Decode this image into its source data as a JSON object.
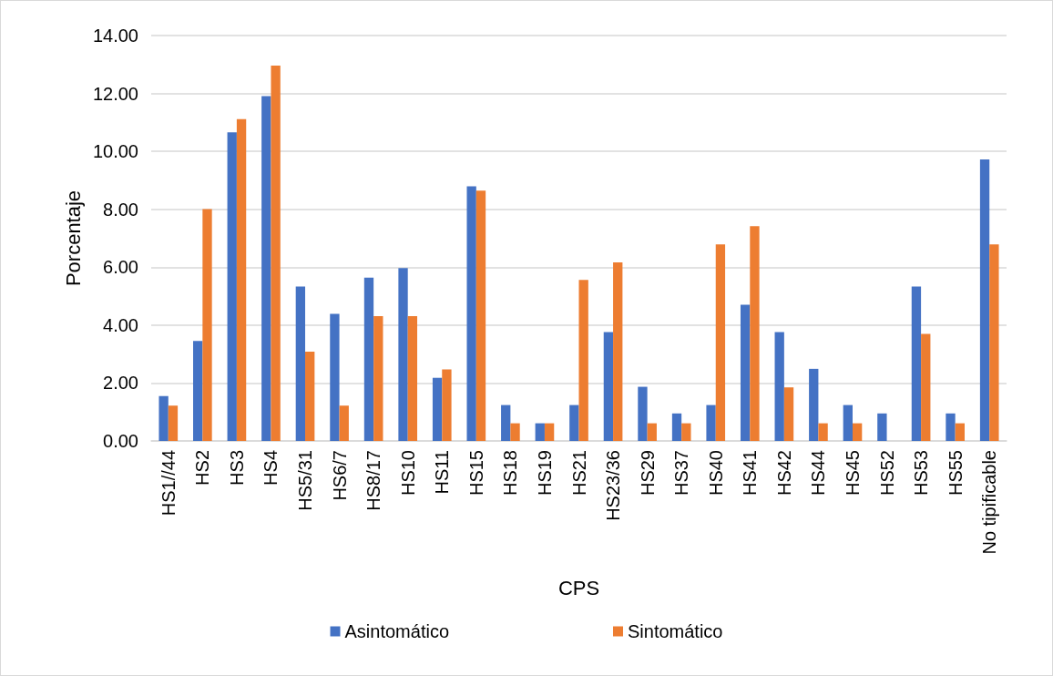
{
  "chart_data": {
    "type": "bar",
    "xlabel": "CPS",
    "ylabel": "Porcentaje",
    "categories": [
      "HS1//44",
      "HS2",
      "HS3",
      "HS4",
      "HS5/31",
      "HS6/7",
      "HS8/17",
      "HS10",
      "HS11",
      "HS15",
      "HS18",
      "HS19",
      "HS21",
      "HS23/36",
      "HS29",
      "HS37",
      "HS40",
      "HS41",
      "HS42",
      "HS44",
      "HS45",
      "HS52",
      "HS53",
      "HS55",
      "No tipificable"
    ],
    "series": [
      {
        "name": "Asintomático",
        "color": "#4472c4",
        "values": [
          1.55,
          3.45,
          10.66,
          11.91,
          5.33,
          4.39,
          5.64,
          5.97,
          2.18,
          8.79,
          1.24,
          0.61,
          1.24,
          3.76,
          1.87,
          0.95,
          1.24,
          4.7,
          3.76,
          2.49,
          1.24,
          0.95,
          5.33,
          0.95,
          9.72
        ]
      },
      {
        "name": "Sintomático",
        "color": "#ed7d31",
        "values": [
          1.22,
          8.01,
          11.11,
          12.96,
          3.08,
          1.22,
          4.31,
          4.31,
          2.47,
          8.64,
          0.61,
          0.61,
          5.56,
          6.17,
          0.61,
          0.61,
          6.79,
          7.42,
          1.85,
          0.61,
          0.61,
          null,
          3.7,
          0.61,
          6.79
        ]
      }
    ],
    "ylim": [
      0,
      14
    ],
    "yticks": [
      {
        "value": 0,
        "label": "0.00"
      },
      {
        "value": 2,
        "label": "2.00"
      },
      {
        "value": 4,
        "label": "4.00"
      },
      {
        "value": 6,
        "label": "6.00"
      },
      {
        "value": 8,
        "label": "8.00"
      },
      {
        "value": 10,
        "label": "10.00"
      },
      {
        "value": 12,
        "label": "12.00"
      },
      {
        "value": 14,
        "label": "14.00"
      }
    ],
    "grid": "y",
    "legend": "bottom"
  }
}
